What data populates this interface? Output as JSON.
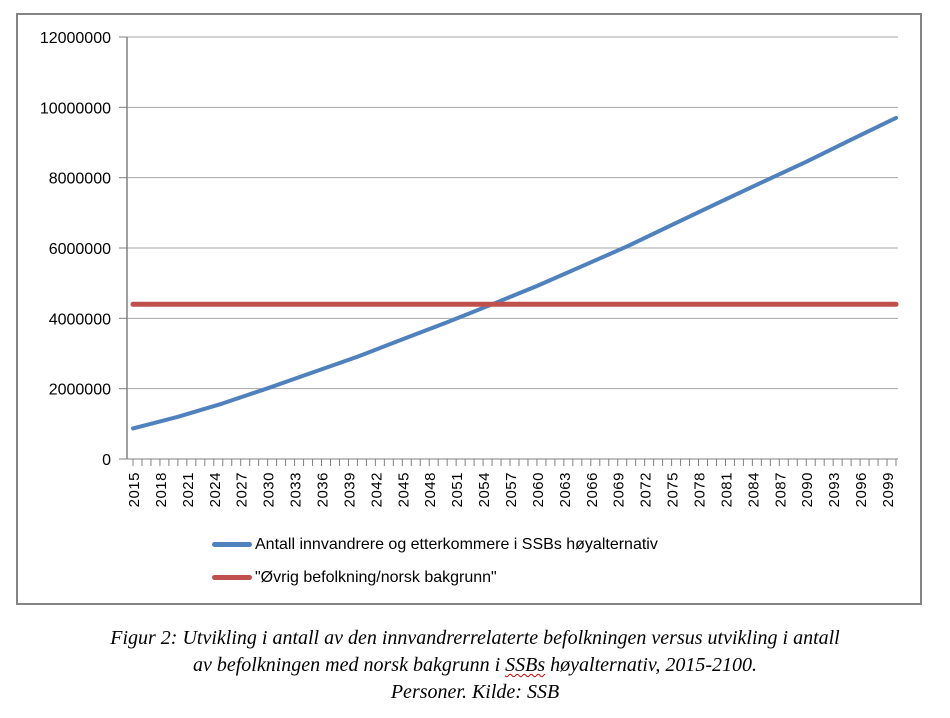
{
  "chart_data": {
    "type": "line",
    "title": "",
    "xlabel": "",
    "ylabel": "",
    "xlim": [
      2015,
      2100
    ],
    "ylim": [
      0,
      12000000
    ],
    "grid": "horizontal",
    "legend_position": "bottom",
    "y_tick_labels": [
      "0",
      "2000000",
      "4000000",
      "6000000",
      "8000000",
      "10000000",
      "12000000"
    ],
    "y_tick_values": [
      0,
      2000000,
      4000000,
      6000000,
      8000000,
      10000000,
      12000000
    ],
    "x_tick_labels": [
      "2015",
      "2018",
      "2021",
      "2024",
      "2027",
      "2030",
      "2033",
      "2036",
      "2039",
      "2042",
      "2045",
      "2048",
      "2051",
      "2054",
      "2057",
      "2060",
      "2063",
      "2066",
      "2069",
      "2072",
      "2075",
      "2078",
      "2081",
      "2084",
      "2087",
      "2090",
      "2093",
      "2096",
      "2099"
    ],
    "minor_x_ticks_every_year": true,
    "series": [
      {
        "name": "Antall innvandrere og etterkommere i SSBs høyalternativ",
        "color": "#4F81BD",
        "stroke_width": 4,
        "points": [
          [
            2015,
            870000
          ],
          [
            2020,
            1200000
          ],
          [
            2025,
            1580000
          ],
          [
            2030,
            2010000
          ],
          [
            2035,
            2460000
          ],
          [
            2040,
            2910000
          ],
          [
            2045,
            3400000
          ],
          [
            2050,
            3890000
          ],
          [
            2055,
            4400000
          ],
          [
            2060,
            4920000
          ],
          [
            2065,
            5480000
          ],
          [
            2070,
            6040000
          ],
          [
            2075,
            6650000
          ],
          [
            2080,
            7260000
          ],
          [
            2085,
            7860000
          ],
          [
            2090,
            8450000
          ],
          [
            2095,
            9080000
          ],
          [
            2100,
            9700000
          ]
        ]
      },
      {
        "name": "\"Øvrig befolkning/norsk bakgrunn\"",
        "color": "#C0504D",
        "stroke_width": 5,
        "points": [
          [
            2015,
            4400000
          ],
          [
            2100,
            4400000
          ]
        ]
      }
    ],
    "colors": {
      "gridline": "#A6A6A6",
      "axis": "#808080",
      "chart_border": "#848484"
    }
  },
  "caption": {
    "line1": "Figur 2: Utvikling i antall av den innvandrerrelaterte befolkningen versus utvikling i antall",
    "line2_pre": "av befolkningen med norsk bakgrunn i ",
    "line2_misspelled": "SSBs",
    "line2_post": " høyalternativ, 2015-2100.",
    "line3": "Personer. Kilde: SSB"
  }
}
